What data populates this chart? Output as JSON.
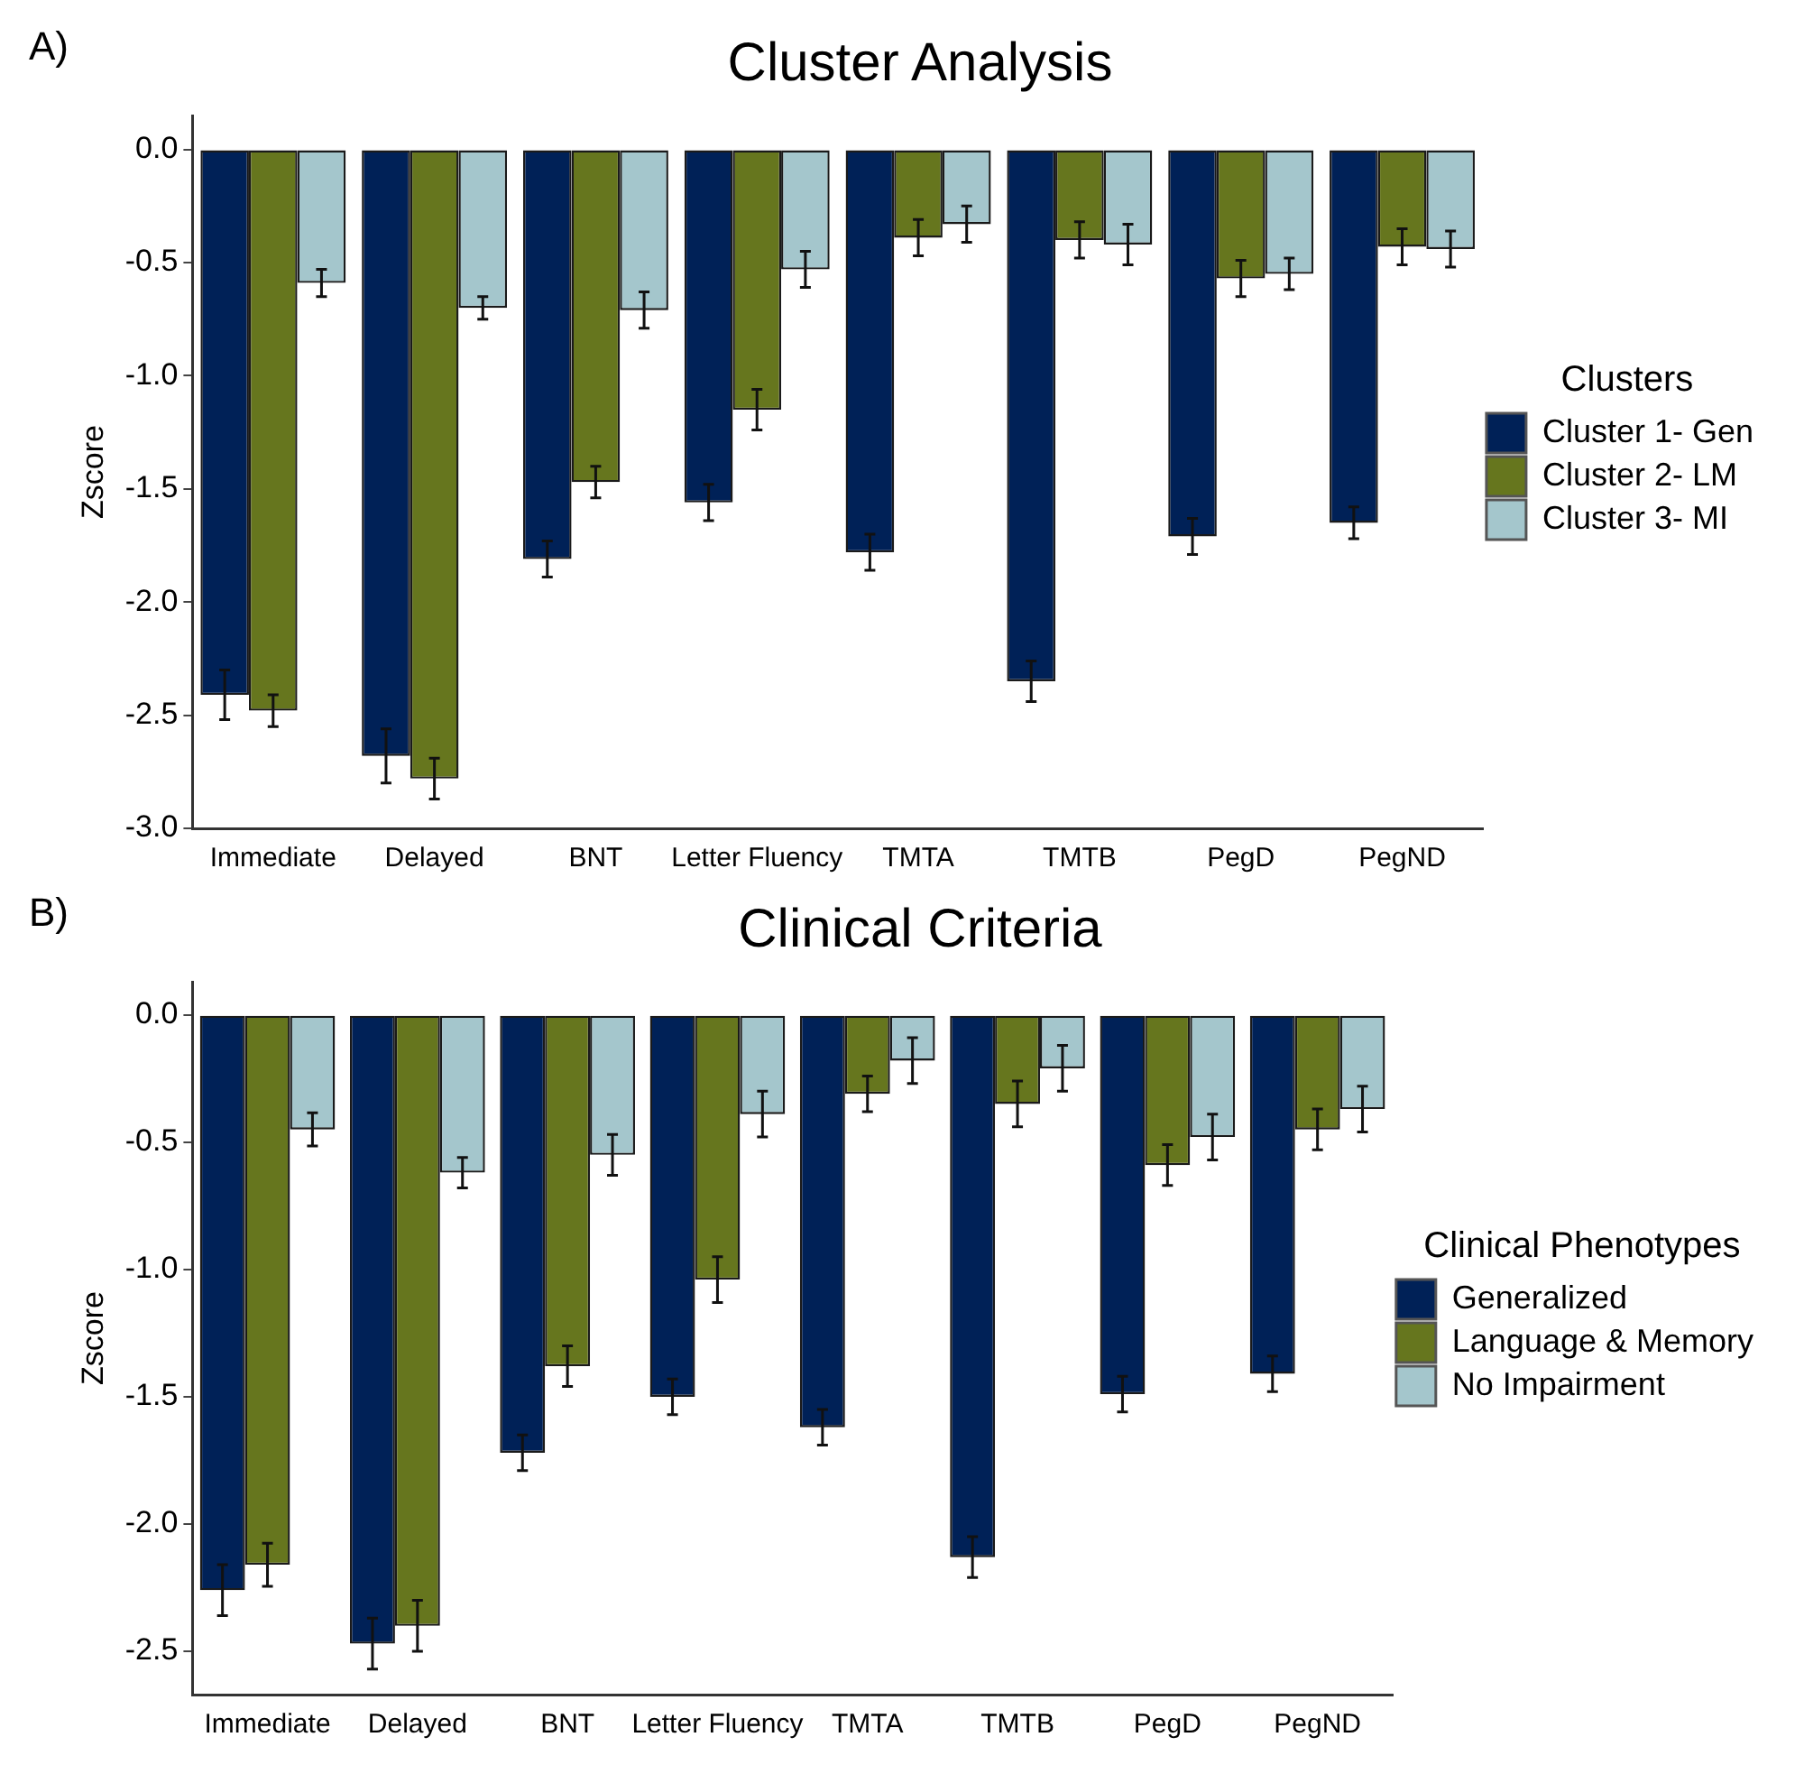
{
  "chart_data": [
    {
      "type": "bar",
      "title": "Cluster Analysis",
      "ylabel": "Zscore",
      "legend_title": "Clusters",
      "annotations": [
        "A)"
      ],
      "categories": [
        "Immediate",
        "Delayed",
        "BNT",
        "Letter Fluency",
        "TMTA",
        "TMTB",
        "PegD",
        "PegND"
      ],
      "series": [
        {
          "name": "Cluster 1- Gen",
          "color": "#002157",
          "values": [
            -2.41,
            -2.68,
            -1.81,
            -1.56,
            -1.78,
            -2.35,
            -1.71,
            -1.65
          ],
          "errors": [
            0.11,
            0.12,
            0.08,
            0.08,
            0.08,
            0.09,
            0.08,
            0.07
          ]
        },
        {
          "name": "Cluster 2- LM",
          "color": "#66761e",
          "values": [
            -2.48,
            -2.78,
            -1.47,
            -1.15,
            -0.39,
            -0.4,
            -0.57,
            -0.43
          ],
          "errors": [
            0.07,
            0.09,
            0.07,
            0.09,
            0.08,
            0.08,
            0.08,
            0.08
          ]
        },
        {
          "name": "Cluster 3- MI",
          "color": "#a4c6cc",
          "values": [
            -0.59,
            -0.7,
            -0.71,
            -0.53,
            -0.33,
            -0.42,
            -0.55,
            -0.44
          ],
          "errors": [
            0.06,
            0.05,
            0.08,
            0.08,
            0.08,
            0.09,
            0.07,
            0.08
          ]
        }
      ],
      "ylim": [
        -3.0,
        0.15
      ],
      "yticks": [
        {
          "value": 0,
          "label": "0.0"
        },
        {
          "value": -0.5,
          "label": "-0.5"
        },
        {
          "value": -1,
          "label": "-1.0"
        },
        {
          "value": -1.5,
          "label": "-1.5"
        },
        {
          "value": -2,
          "label": "-2.0"
        },
        {
          "value": -2.5,
          "label": "-2.5"
        },
        {
          "value": -3,
          "label": "-3.0"
        }
      ],
      "grid": false,
      "legend": "right"
    },
    {
      "type": "bar",
      "title": "Clinical Criteria",
      "ylabel": "Zscore",
      "legend_title": "Clinical Phenotypes",
      "annotations": [
        "B)"
      ],
      "categories": [
        "Immediate",
        "Delayed",
        "BNT",
        "Letter Fluency",
        "TMTA",
        "TMTB",
        "PegD",
        "PegND"
      ],
      "series": [
        {
          "name": "Generalized",
          "color": "#002157",
          "values": [
            -2.26,
            -2.47,
            -1.72,
            -1.5,
            -1.62,
            -2.13,
            -1.49,
            -1.41
          ],
          "errors": [
            0.1,
            0.1,
            0.07,
            0.07,
            0.07,
            0.08,
            0.07,
            0.07
          ]
        },
        {
          "name": "Language & Memory",
          "color": "#66761e",
          "values": [
            -2.16,
            -2.4,
            -1.38,
            -1.04,
            -0.31,
            -0.35,
            -0.59,
            -0.45
          ],
          "errors": [
            0.085,
            0.1,
            0.08,
            0.09,
            0.07,
            0.09,
            0.08,
            0.08
          ]
        },
        {
          "name": "No Impairment",
          "color": "#a4c6cc",
          "values": [
            -0.45,
            -0.62,
            -0.55,
            -0.39,
            -0.18,
            -0.21,
            -0.48,
            -0.37
          ],
          "errors": [
            0.065,
            0.06,
            0.08,
            0.09,
            0.09,
            0.09,
            0.09,
            0.09
          ]
        }
      ],
      "ylim": [
        -2.67,
        0.13
      ],
      "yticks": [
        {
          "value": 0,
          "label": "0.0"
        },
        {
          "value": -0.5,
          "label": "-0.5"
        },
        {
          "value": -1,
          "label": "-1.0"
        },
        {
          "value": -1.5,
          "label": "-1.5"
        },
        {
          "value": -2,
          "label": "-2.0"
        },
        {
          "value": -2.5,
          "label": "-2.5"
        }
      ],
      "grid": false,
      "legend": "right"
    }
  ]
}
